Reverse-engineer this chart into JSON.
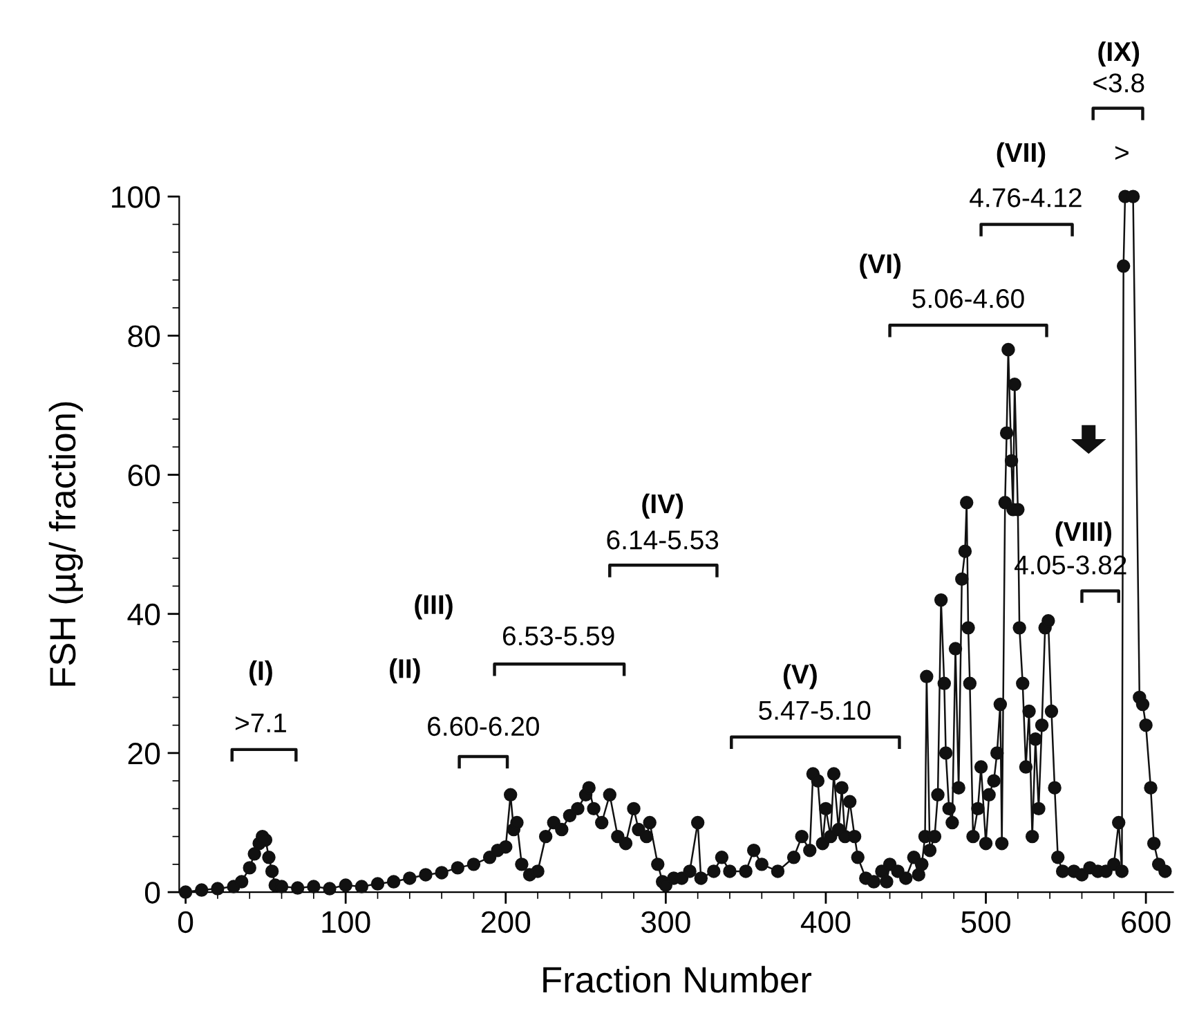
{
  "chart_data": {
    "type": "line",
    "xlabel": "Fraction Number",
    "ylabel": "FSH (µg/ fraction)",
    "xlim": [
      -4,
      617
    ],
    "ylim": [
      0,
      100
    ],
    "xticks": [
      0,
      100,
      200,
      300,
      400,
      500,
      600
    ],
    "yticks": [
      0,
      20,
      40,
      60,
      80,
      100
    ],
    "marker": "circle",
    "line_style": "solid",
    "grid": false,
    "legend": false,
    "series": [
      {
        "color": "#111111",
        "x": [
          0,
          10,
          20,
          30,
          35,
          40,
          43,
          46,
          48,
          50,
          52,
          54,
          56,
          60,
          70,
          80,
          90,
          100,
          110,
          120,
          130,
          140,
          150,
          160,
          170,
          180,
          190,
          195,
          200,
          203,
          205,
          207,
          210,
          215,
          220,
          225,
          230,
          235,
          240,
          245,
          250,
          252,
          255,
          260,
          265,
          270,
          275,
          280,
          283,
          288,
          290,
          295,
          298,
          300,
          305,
          310,
          315,
          320,
          322,
          330,
          335,
          340,
          350,
          355,
          360,
          370,
          380,
          385,
          390,
          392,
          395,
          398,
          400,
          403,
          405,
          408,
          410,
          412,
          415,
          418,
          420,
          425,
          430,
          435,
          438,
          440,
          445,
          450,
          455,
          458,
          460,
          462,
          463,
          465,
          468,
          470,
          472,
          474,
          475,
          477,
          479,
          481,
          483,
          485,
          487,
          488,
          489,
          490,
          492,
          495,
          497,
          500,
          502,
          505,
          507,
          509,
          510,
          512,
          513,
          514,
          516,
          517,
          518,
          520,
          521,
          523,
          525,
          527,
          529,
          531,
          533,
          535,
          537,
          539,
          541,
          543,
          545,
          548,
          555,
          560,
          565,
          570,
          575,
          580,
          583,
          585,
          586,
          587,
          592,
          596,
          598,
          600,
          603,
          605,
          608,
          612
        ],
        "values": [
          0,
          0.3,
          0.5,
          0.8,
          1.5,
          3.5,
          5.5,
          7,
          8,
          7.5,
          5,
          3,
          1,
          0.8,
          0.6,
          0.8,
          0.5,
          1,
          0.8,
          1.2,
          1.5,
          2,
          2.5,
          2.8,
          3.5,
          4,
          5,
          6,
          6.5,
          14,
          9,
          10,
          4,
          2.5,
          3,
          8,
          10,
          9,
          11,
          12,
          14,
          15,
          12,
          10,
          14,
          8,
          7,
          12,
          9,
          8,
          10,
          4,
          1.5,
          1,
          2,
          2,
          3,
          10,
          2,
          3,
          5,
          3,
          3,
          6,
          4,
          3,
          5,
          8,
          6,
          17,
          16,
          7,
          12,
          8,
          17,
          9,
          15,
          8,
          13,
          8,
          5,
          2,
          1.5,
          3,
          1.5,
          4,
          3,
          2,
          5,
          2.5,
          4,
          8,
          31,
          6,
          8,
          14,
          42,
          30,
          20,
          12,
          10,
          35,
          15,
          45,
          49,
          56,
          38,
          30,
          8,
          12,
          18,
          7,
          14,
          16,
          20,
          27,
          7,
          56,
          66,
          78,
          62,
          55,
          73,
          55,
          38,
          30,
          18,
          26,
          8,
          22,
          12,
          24,
          38,
          39,
          26,
          15,
          5,
          3,
          3,
          2.5,
          3.5,
          3,
          3,
          4,
          10,
          3,
          90,
          100,
          100,
          28,
          27,
          24,
          15,
          7,
          4,
          3
        ]
      }
    ],
    "annotations": [
      "(I)",
      ">7.1",
      "(II)",
      "6.60-6.20",
      "(III)",
      "6.53-5.59",
      "(IV)",
      "6.14-5.53",
      "(V)",
      "5.47-5.10",
      "(VI)",
      "5.06-4.60",
      "(VII)",
      "4.76-4.12",
      "(VIII)",
      "4.05-3.82",
      "(IX)",
      "<3.8",
      ">"
    ]
  }
}
